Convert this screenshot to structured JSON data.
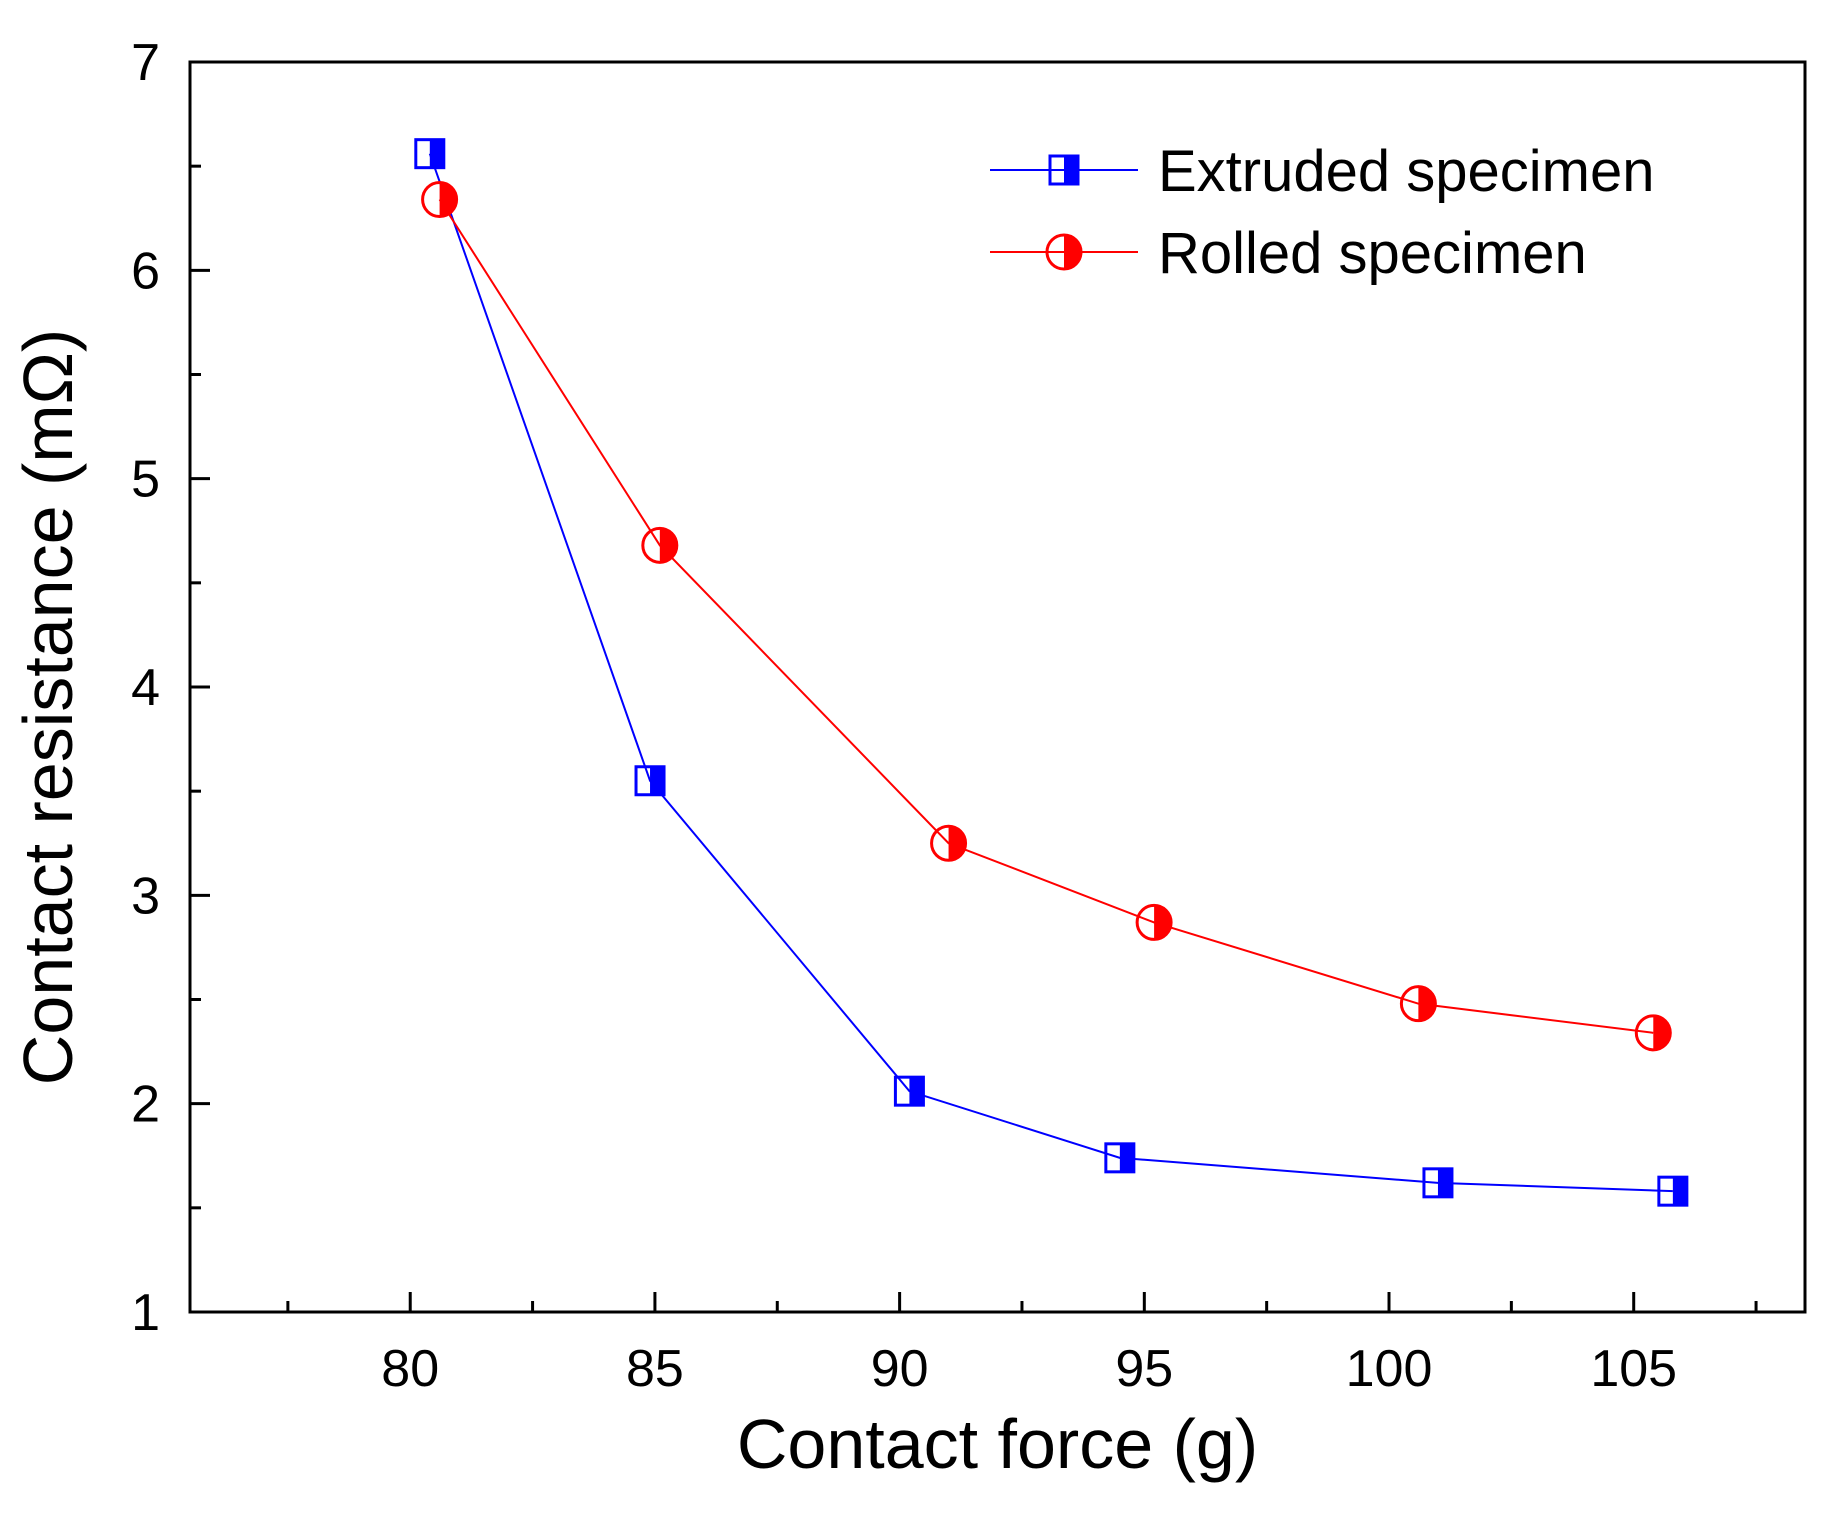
{
  "chart_data": {
    "type": "line",
    "title": "",
    "xlabel": "Contact force (g)",
    "ylabel": "Contact resistance (mΩ)",
    "xlim": [
      75.5,
      108.5
    ],
    "ylim": [
      1,
      7
    ],
    "x_ticks": [
      80,
      85,
      90,
      95,
      100,
      105
    ],
    "x_tick_labels": [
      "80",
      "85",
      "90",
      "95",
      "100",
      "105"
    ],
    "y_ticks": [
      1,
      2,
      3,
      4,
      5,
      6,
      7
    ],
    "y_tick_labels": [
      "1",
      "2",
      "3",
      "4",
      "5",
      "6",
      "7"
    ],
    "x_minor_ticks": [
      77.5,
      82.5,
      87.5,
      92.5,
      97.5,
      102.5,
      107.5
    ],
    "y_minor_ticks": [
      1.5,
      2.5,
      3.5,
      4.5,
      5.5,
      6.5
    ],
    "grid": false,
    "legend_position": "top-right",
    "series": [
      {
        "name": "Extruded specimen",
        "color": "#0000ff",
        "marker": "half-filled-square",
        "x": [
          80.4,
          84.9,
          90.2,
          94.5,
          101.0,
          105.8
        ],
        "y": [
          6.56,
          3.55,
          2.06,
          1.74,
          1.62,
          1.58
        ]
      },
      {
        "name": "Rolled specimen",
        "color": "#ff0000",
        "marker": "half-filled-circle",
        "x": [
          80.6,
          85.1,
          91.0,
          95.2,
          100.6,
          105.4
        ],
        "y": [
          6.34,
          4.68,
          3.25,
          2.87,
          2.48,
          2.34
        ]
      }
    ]
  }
}
